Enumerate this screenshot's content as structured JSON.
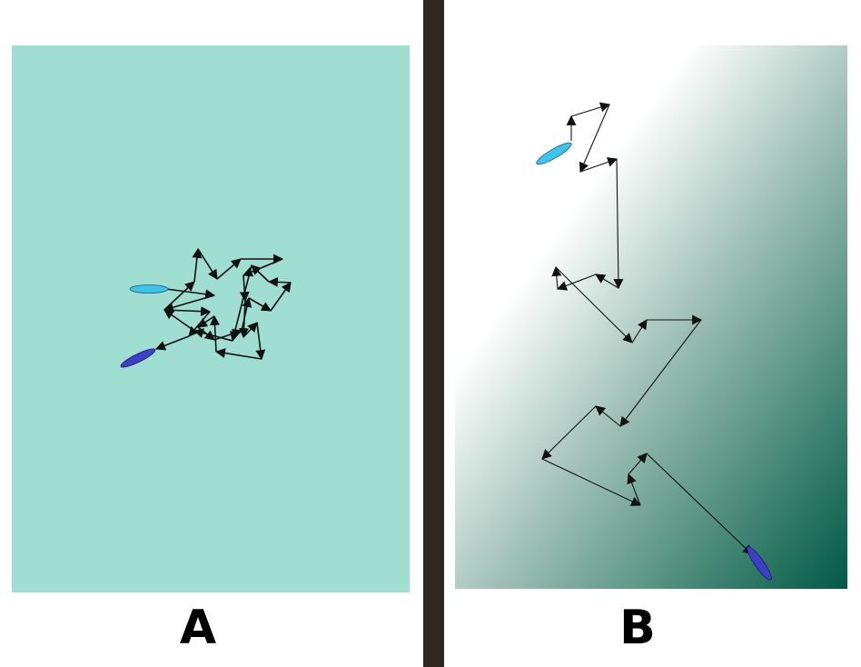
{
  "panels": [
    {
      "label": "A",
      "background": "#a0ded2",
      "path_color": "#111111",
      "start_marker_color": "#3ec3ea",
      "end_marker_color": "#3d3fc6"
    },
    {
      "label": "B",
      "background_gradient": [
        "#ffffff",
        "#ffffff",
        "#9fc0b6",
        "#005a44"
      ],
      "path_color": "#111111",
      "start_marker_color": "#3ec3ea",
      "end_marker_color": "#3d3fc6"
    }
  ],
  "divider_color": "#2d2922"
}
